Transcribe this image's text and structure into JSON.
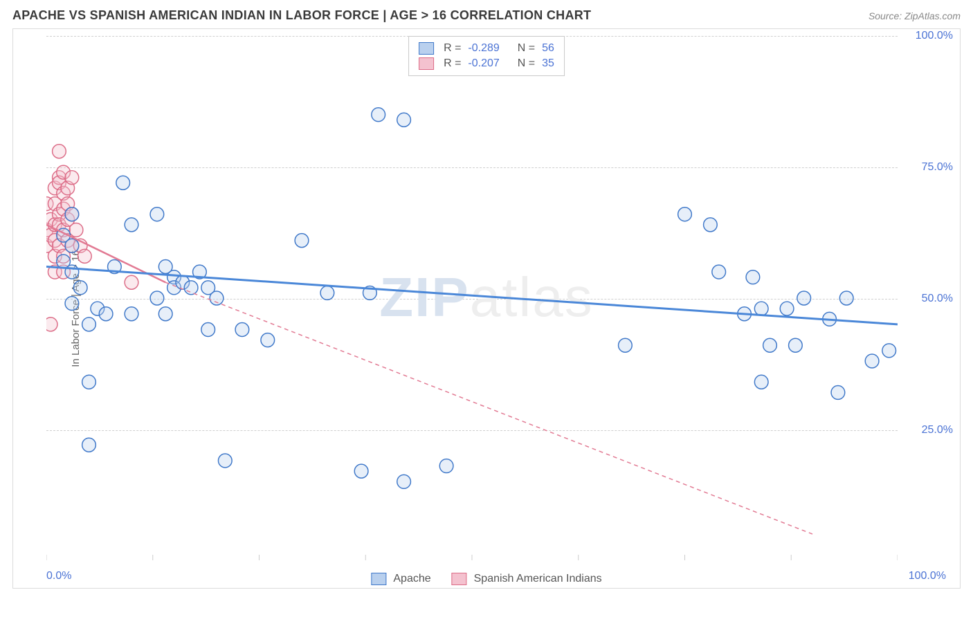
{
  "header": {
    "title": "APACHE VS SPANISH AMERICAN INDIAN IN LABOR FORCE | AGE > 16 CORRELATION CHART",
    "source": "Source: ZipAtlas.com"
  },
  "chart": {
    "type": "scatter",
    "ylabel": "In Labor Force | Age > 16",
    "xlim": [
      0,
      100
    ],
    "ylim": [
      0,
      100
    ],
    "xtick_labels": [
      "0.0%",
      "100.0%"
    ],
    "ytick_positions": [
      25,
      50,
      75,
      100
    ],
    "ytick_labels": [
      "25.0%",
      "50.0%",
      "75.0%",
      "100.0%"
    ],
    "gridline_y": [
      25,
      50,
      75,
      100
    ],
    "background_color": "#ffffff",
    "grid_color": "#cfcfcf",
    "axis_color": "#cccccc",
    "marker_radius": 10,
    "marker_stroke_width": 1.5,
    "marker_fill_opacity": 0.35
  },
  "series": {
    "apache": {
      "label": "Apache",
      "color": "#4a87d8",
      "fill": "#b9d0ee",
      "stroke": "#3f78c9",
      "R": "-0.289",
      "N": "56",
      "points": [
        [
          2,
          57
        ],
        [
          2,
          62
        ],
        [
          3,
          55
        ],
        [
          3,
          60
        ],
        [
          3,
          66
        ],
        [
          3,
          49
        ],
        [
          4,
          52
        ],
        [
          5,
          45
        ],
        [
          5,
          34
        ],
        [
          5,
          22
        ],
        [
          6,
          48
        ],
        [
          7,
          47
        ],
        [
          8,
          56
        ],
        [
          9,
          72
        ],
        [
          10,
          64
        ],
        [
          10,
          47
        ],
        [
          13,
          66
        ],
        [
          13,
          50
        ],
        [
          14,
          56
        ],
        [
          14,
          47
        ],
        [
          15,
          54
        ],
        [
          15,
          52
        ],
        [
          16,
          53
        ],
        [
          17,
          52
        ],
        [
          18,
          55
        ],
        [
          19,
          52
        ],
        [
          19,
          44
        ],
        [
          20,
          50
        ],
        [
          21,
          19
        ],
        [
          23,
          44
        ],
        [
          26,
          42
        ],
        [
          30,
          61
        ],
        [
          33,
          51
        ],
        [
          38,
          51
        ],
        [
          37,
          17
        ],
        [
          39,
          85
        ],
        [
          42,
          84
        ],
        [
          42,
          15
        ],
        [
          47,
          18
        ],
        [
          68,
          41
        ],
        [
          75,
          66
        ],
        [
          78,
          64
        ],
        [
          79,
          55
        ],
        [
          82,
          47
        ],
        [
          83,
          54
        ],
        [
          84,
          48
        ],
        [
          84,
          34
        ],
        [
          85,
          41
        ],
        [
          87,
          48
        ],
        [
          88,
          41
        ],
        [
          89,
          50
        ],
        [
          92,
          46
        ],
        [
          93,
          32
        ],
        [
          94,
          50
        ],
        [
          97,
          38
        ],
        [
          99,
          40
        ]
      ],
      "trend": {
        "x1": 0,
        "y1": 56,
        "x2": 100,
        "y2": 45,
        "dash": "0",
        "width": 3
      }
    },
    "spanish": {
      "label": "Spanish American Indians",
      "color": "#e27a93",
      "fill": "#f4c2cf",
      "stroke": "#dc6c87",
      "R": "-0.207",
      "N": "35",
      "points": [
        [
          0,
          60
        ],
        [
          0,
          63
        ],
        [
          0,
          68
        ],
        [
          0.5,
          62
        ],
        [
          0.5,
          65
        ],
        [
          0.5,
          45
        ],
        [
          1,
          71
        ],
        [
          1,
          68
        ],
        [
          1,
          64
        ],
        [
          1,
          61
        ],
        [
          1,
          58
        ],
        [
          1,
          55
        ],
        [
          1.5,
          78
        ],
        [
          1.5,
          73
        ],
        [
          1.5,
          72
        ],
        [
          1.5,
          66
        ],
        [
          1.5,
          64
        ],
        [
          1.5,
          60
        ],
        [
          2,
          74
        ],
        [
          2,
          70
        ],
        [
          2,
          67
        ],
        [
          2,
          63
        ],
        [
          2,
          58
        ],
        [
          2,
          55
        ],
        [
          2.5,
          71
        ],
        [
          2.5,
          68
        ],
        [
          2.5,
          65
        ],
        [
          2.5,
          61
        ],
        [
          3,
          73
        ],
        [
          3,
          66
        ],
        [
          3,
          60
        ],
        [
          3.5,
          63
        ],
        [
          4,
          60
        ],
        [
          4.5,
          58
        ],
        [
          10,
          53
        ]
      ],
      "trend_solid": {
        "x1": 0,
        "y1": 64,
        "x2": 14,
        "y2": 53,
        "dash": "0",
        "width": 2.5
      },
      "trend_dash": {
        "x1": 14,
        "y1": 53,
        "x2": 90,
        "y2": 5,
        "dash": "6,5",
        "width": 1.5
      }
    }
  },
  "legend_top": {
    "rows": [
      {
        "swatch_fill": "#b9d0ee",
        "swatch_stroke": "#3f78c9",
        "R": "-0.289",
        "N": "56"
      },
      {
        "swatch_fill": "#f4c2cf",
        "swatch_stroke": "#dc6c87",
        "R": "-0.207",
        "N": "35"
      }
    ]
  },
  "legend_bottom": {
    "items": [
      {
        "swatch_fill": "#b9d0ee",
        "swatch_stroke": "#3f78c9",
        "label": "Apache"
      },
      {
        "swatch_fill": "#f4c2cf",
        "swatch_stroke": "#dc6c87",
        "label": "Spanish American Indians"
      }
    ]
  },
  "watermark": {
    "part1": "ZIP",
    "part2": "atlas"
  },
  "static": {
    "r_prefix": "R =",
    "n_prefix": "N ="
  }
}
